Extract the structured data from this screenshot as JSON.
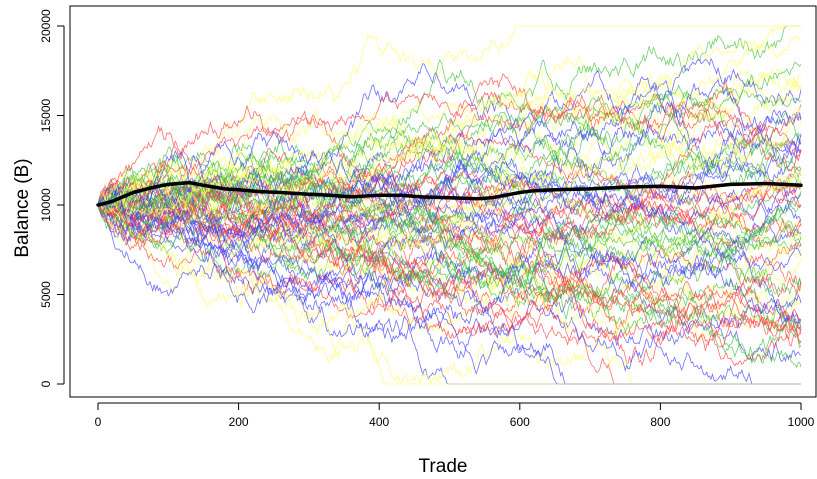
{
  "chart_data": {
    "type": "line",
    "title": "",
    "xlabel": "Trade",
    "ylabel": "Balance (B)",
    "xlim": [
      0,
      1000
    ],
    "ylim": [
      0,
      20000
    ],
    "x_ticks": [
      0,
      200,
      400,
      600,
      800,
      1000
    ],
    "y_ticks": [
      0,
      5000,
      10000,
      15000,
      20000
    ],
    "x_tick_labels": [
      "0",
      "200",
      "400",
      "600",
      "800",
      "1000"
    ],
    "y_tick_labels": [
      "0",
      "5000",
      "10000",
      "15000",
      "20000"
    ],
    "grid": false,
    "legend": "none",
    "start_balance": 10000,
    "bounds": {
      "lower": 0,
      "upper": 20000
    },
    "simulated_path_count": 80,
    "simulated_path_colors": [
      "#ff4040",
      "#40c040",
      "#4040ff",
      "#ffff66"
    ],
    "mean_path": {
      "color": "#000000",
      "x": [
        0,
        20,
        50,
        80,
        100,
        130,
        150,
        180,
        200,
        230,
        260,
        300,
        330,
        360,
        400,
        430,
        460,
        500,
        540,
        560,
        600,
        620,
        650,
        700,
        750,
        800,
        850,
        900,
        950,
        1000
      ],
      "y": [
        10000,
        10200,
        10700,
        11000,
        11150,
        11250,
        11100,
        10900,
        10850,
        10750,
        10700,
        10600,
        10550,
        10450,
        10550,
        10550,
        10450,
        10400,
        10350,
        10400,
        10700,
        10800,
        10850,
        10900,
        11000,
        11050,
        10950,
        11150,
        11200,
        11100
      ]
    }
  }
}
